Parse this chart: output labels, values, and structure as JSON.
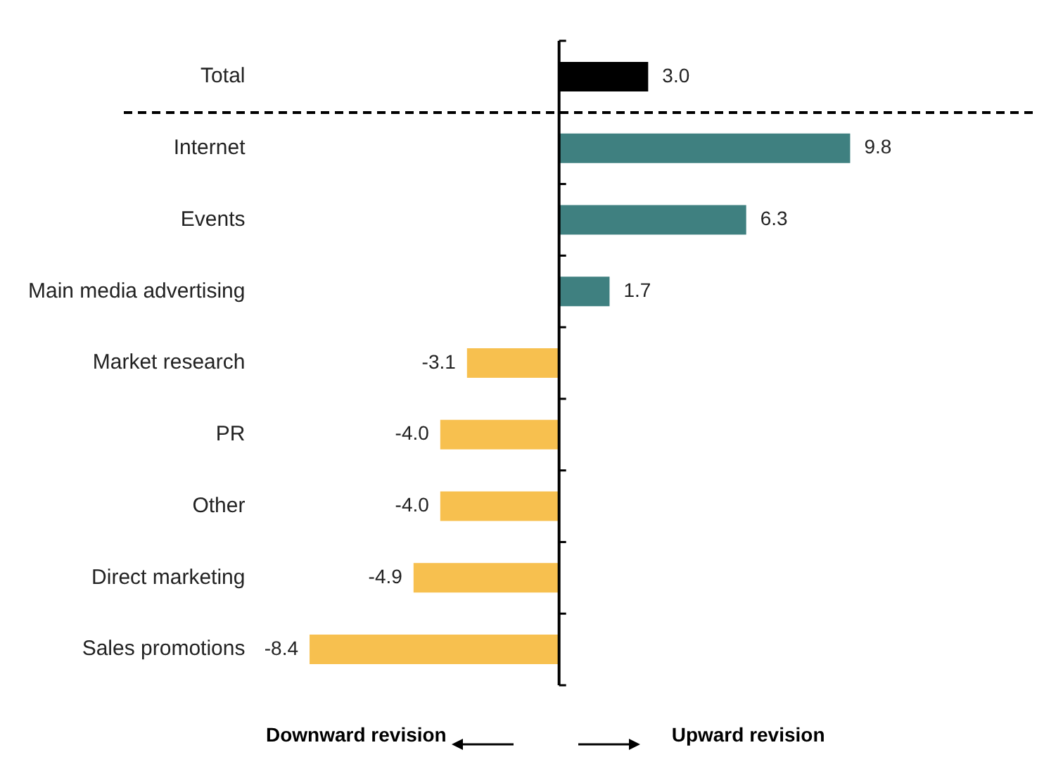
{
  "chart_data": {
    "type": "bar",
    "orientation": "horizontal",
    "categories": [
      "Total",
      "Internet",
      "Events",
      "Main media advertising",
      "Market research",
      "PR",
      "Other",
      "Direct marketing",
      "Sales promotions"
    ],
    "values": [
      3.0,
      9.8,
      6.3,
      1.7,
      -3.1,
      -4.0,
      -4.0,
      -4.9,
      -8.4
    ],
    "colors": [
      "#000000",
      "#3f8080",
      "#3f8080",
      "#3f8080",
      "#f7c04f",
      "#f7c04f",
      "#f7c04f",
      "#f7c04f",
      "#f7c04f"
    ],
    "value_labels": [
      "3.0",
      "9.8",
      "6.3",
      "1.7",
      "-3.1",
      "-4.0",
      "-4.0",
      "-4.9",
      "-8.4"
    ],
    "tick_labels": "y",
    "grid": false,
    "legend": false,
    "annotations": [
      "Downward revision",
      "Upward revision"
    ]
  }
}
